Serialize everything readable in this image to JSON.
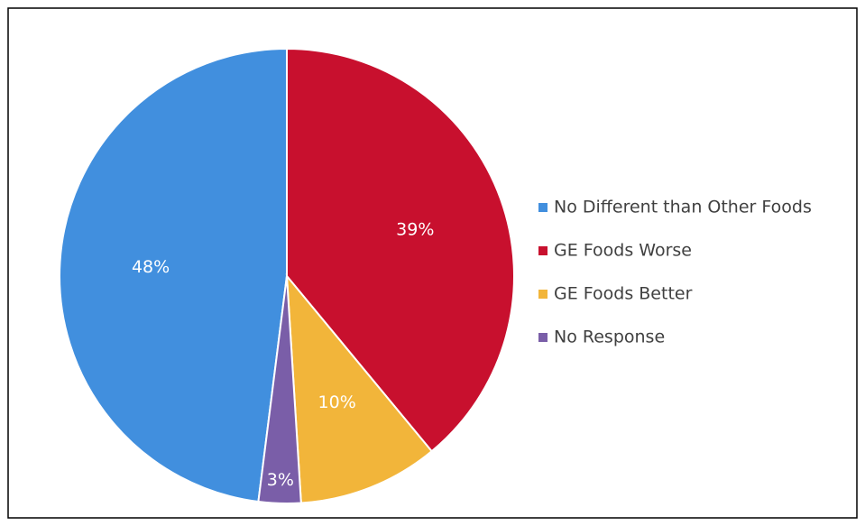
{
  "chart_data": {
    "type": "pie",
    "categories": [
      "No Different than Other Foods",
      "GE Foods Worse",
      "GE Foods Better",
      "No Response"
    ],
    "values": [
      48,
      39,
      10,
      3
    ],
    "value_labels": [
      "48%",
      "39%",
      "10%",
      "3%"
    ],
    "colors": [
      "#418fde",
      "#c8102e",
      "#f2b53a",
      "#7a5ea8"
    ],
    "legend": "right"
  }
}
